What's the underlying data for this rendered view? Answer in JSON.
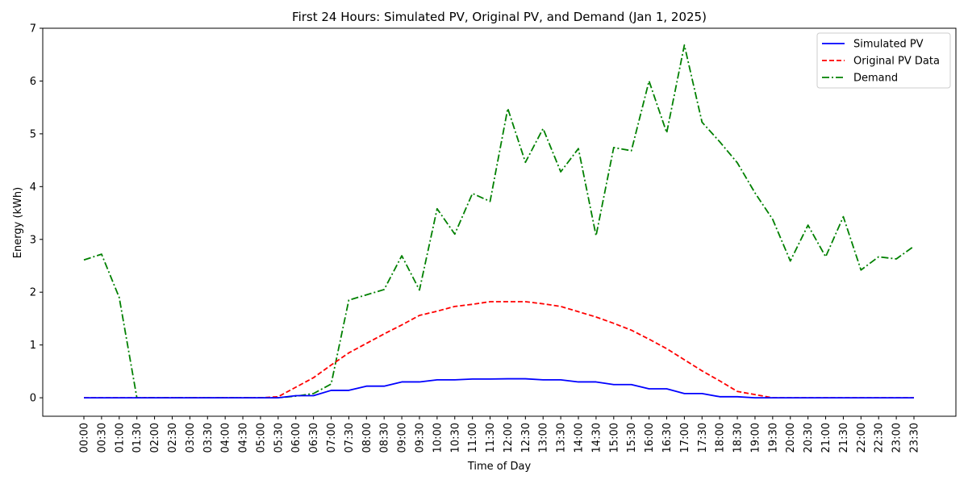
{
  "chart_data": {
    "type": "line",
    "title": "First 24 Hours: Simulated PV, Original PV, and Demand (Jan 1, 2025)",
    "xlabel": "Time of Day",
    "ylabel": "Energy (kWh)",
    "ylim": [
      -0.35,
      7
    ],
    "yticks": [
      0,
      1,
      2,
      3,
      4,
      5,
      6,
      7
    ],
    "grid": false,
    "legend_position": "top-right",
    "x": [
      "00:00",
      "00:30",
      "01:00",
      "01:30",
      "02:00",
      "02:30",
      "03:00",
      "03:30",
      "04:00",
      "04:30",
      "05:00",
      "05:30",
      "06:00",
      "06:30",
      "07:00",
      "07:30",
      "08:00",
      "08:30",
      "09:00",
      "09:30",
      "10:00",
      "10:30",
      "11:00",
      "11:30",
      "12:00",
      "12:30",
      "13:00",
      "13:30",
      "14:00",
      "14:30",
      "15:00",
      "15:30",
      "16:00",
      "16:30",
      "17:00",
      "17:30",
      "18:00",
      "18:30",
      "19:00",
      "19:30",
      "20:00",
      "20:30",
      "21:00",
      "21:30",
      "22:00",
      "22:30",
      "23:00",
      "23:30"
    ],
    "series": [
      {
        "name": "Simulated PV",
        "color": "#0000ff",
        "style": "solid",
        "values": [
          0,
          0,
          0,
          0,
          0,
          0,
          0,
          0,
          0,
          0,
          0,
          0,
          0.04,
          0.04,
          0.14,
          0.14,
          0.22,
          0.22,
          0.3,
          0.3,
          0.34,
          0.34,
          0.355,
          0.355,
          0.36,
          0.36,
          0.34,
          0.34,
          0.3,
          0.3,
          0.25,
          0.25,
          0.17,
          0.17,
          0.08,
          0.08,
          0.02,
          0.02,
          0,
          0,
          0,
          0,
          0,
          0,
          0,
          0,
          0,
          0
        ]
      },
      {
        "name": "Original PV Data",
        "color": "#ff0000",
        "style": "dashed",
        "values": [
          0,
          0,
          0,
          0,
          0,
          0,
          0,
          0,
          0,
          0,
          0,
          0.02,
          0.2,
          0.38,
          0.62,
          0.85,
          1.03,
          1.21,
          1.38,
          1.56,
          1.64,
          1.73,
          1.77,
          1.82,
          1.82,
          1.82,
          1.78,
          1.73,
          1.63,
          1.53,
          1.41,
          1.28,
          1.11,
          0.93,
          0.72,
          0.51,
          0.32,
          0.12,
          0.06,
          0,
          0,
          0,
          0,
          0,
          0,
          0,
          0,
          0
        ]
      },
      {
        "name": "Demand",
        "color": "#008000",
        "style": "dashdot",
        "values": [
          2.61,
          2.72,
          1.9,
          0,
          0,
          0,
          0,
          0,
          0,
          0,
          0,
          0,
          0.03,
          0.08,
          0.26,
          1.85,
          1.95,
          2.05,
          2.69,
          2.04,
          3.58,
          3.1,
          3.87,
          3.72,
          5.48,
          4.46,
          5.1,
          4.28,
          4.72,
          3.07,
          4.74,
          4.68,
          6.0,
          5.02,
          6.68,
          5.22,
          4.85,
          4.45,
          3.88,
          3.38,
          2.59,
          3.27,
          2.67,
          3.43,
          2.42,
          2.67,
          2.63,
          2.87
        ]
      }
    ]
  }
}
